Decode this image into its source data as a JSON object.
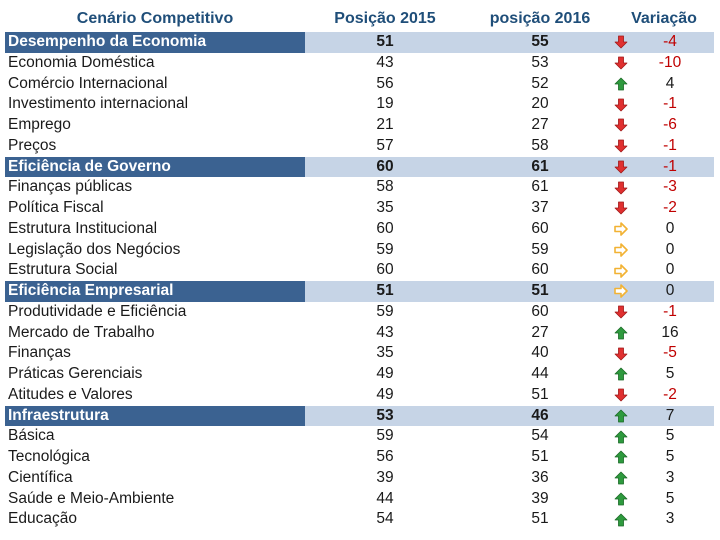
{
  "header": {
    "col_name": "Cenário Competitivo",
    "col_2015": "Posição 2015",
    "col_2016": "posição 2016",
    "col_var": "Variação"
  },
  "colors": {
    "section_bg": "#3b6291",
    "section_band": "#c6d4e6",
    "header_text": "#1f4e79",
    "down_arrow": "#e03030",
    "up_arrow": "#2e9a3e",
    "flat_arrow": "#f2b233",
    "negative_text": "#c00000"
  },
  "rows": [
    {
      "name": "Desempenho da Economia",
      "p2015": "51",
      "p2016": "55",
      "trend": "down",
      "var": "-4",
      "section": true
    },
    {
      "name": "Economia Doméstica",
      "p2015": "43",
      "p2016": "53",
      "trend": "down",
      "var": "-10"
    },
    {
      "name": "Comércio Internacional",
      "p2015": "56",
      "p2016": "52",
      "trend": "up",
      "var": "4"
    },
    {
      "name": "Investimento internacional",
      "p2015": "19",
      "p2016": "20",
      "trend": "down",
      "var": "-1"
    },
    {
      "name": "Emprego",
      "p2015": "21",
      "p2016": "27",
      "trend": "down",
      "var": "-6"
    },
    {
      "name": "Preços",
      "p2015": "57",
      "p2016": "58",
      "trend": "down",
      "var": "-1"
    },
    {
      "name": "Eficiência de Governo",
      "p2015": "60",
      "p2016": "61",
      "trend": "down",
      "var": "-1",
      "section": true
    },
    {
      "name": "Finanças públicas",
      "p2015": "58",
      "p2016": "61",
      "trend": "down",
      "var": "-3"
    },
    {
      "name": "Política Fiscal",
      "p2015": "35",
      "p2016": "37",
      "trend": "down",
      "var": "-2"
    },
    {
      "name": "Estrutura Institucional",
      "p2015": "60",
      "p2016": "60",
      "trend": "flat",
      "var": "0"
    },
    {
      "name": "Legislação dos Negócios",
      "p2015": "59",
      "p2016": "59",
      "trend": "flat",
      "var": "0"
    },
    {
      "name": "Estrutura Social",
      "p2015": "60",
      "p2016": "60",
      "trend": "flat",
      "var": "0"
    },
    {
      "name": "Eficiência Empresarial",
      "p2015": "51",
      "p2016": "51",
      "trend": "flat",
      "var": "0",
      "section": true
    },
    {
      "name": "Produtividade e Eficiência",
      "p2015": "59",
      "p2016": "60",
      "trend": "down",
      "var": "-1"
    },
    {
      "name": "Mercado de Trabalho",
      "p2015": "43",
      "p2016": "27",
      "trend": "up",
      "var": "16"
    },
    {
      "name": "Finanças",
      "p2015": "35",
      "p2016": "40",
      "trend": "down",
      "var": "-5"
    },
    {
      "name": "Práticas Gerenciais",
      "p2015": "49",
      "p2016": "44",
      "trend": "up",
      "var": "5"
    },
    {
      "name": "Atitudes e Valores",
      "p2015": "49",
      "p2016": "51",
      "trend": "down",
      "var": "-2"
    },
    {
      "name": "Infraestrutura",
      "p2015": "53",
      "p2016": "46",
      "trend": "up",
      "var": "7",
      "section": true
    },
    {
      "name": "Básica",
      "p2015": "59",
      "p2016": "54",
      "trend": "up",
      "var": "5"
    },
    {
      "name": "Tecnológica",
      "p2015": "56",
      "p2016": "51",
      "trend": "up",
      "var": "5"
    },
    {
      "name": "Científica",
      "p2015": "39",
      "p2016": "36",
      "trend": "up",
      "var": "3"
    },
    {
      "name": "Saúde e Meio-Ambiente",
      "p2015": "44",
      "p2016": "39",
      "trend": "up",
      "var": "5"
    },
    {
      "name": "Educação",
      "p2015": "54",
      "p2016": "51",
      "trend": "up",
      "var": "3"
    }
  ]
}
